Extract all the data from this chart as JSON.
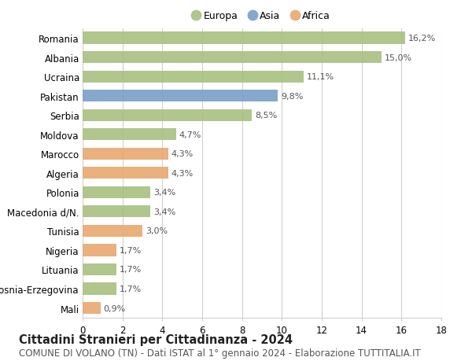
{
  "categories": [
    "Romania",
    "Albania",
    "Ucraina",
    "Pakistan",
    "Serbia",
    "Moldova",
    "Marocco",
    "Algeria",
    "Polonia",
    "Macedonia d/N.",
    "Tunisia",
    "Nigeria",
    "Lituania",
    "Bosnia-Erzegovina",
    "Mali"
  ],
  "values": [
    16.2,
    15.0,
    11.1,
    9.8,
    8.5,
    4.7,
    4.3,
    4.3,
    3.4,
    3.4,
    3.0,
    1.7,
    1.7,
    1.7,
    0.9
  ],
  "labels": [
    "16,2%",
    "15,0%",
    "11,1%",
    "9,8%",
    "8,5%",
    "4,7%",
    "4,3%",
    "4,3%",
    "3,4%",
    "3,4%",
    "3,0%",
    "1,7%",
    "1,7%",
    "1,7%",
    "0,9%"
  ],
  "continents": [
    "Europa",
    "Europa",
    "Europa",
    "Asia",
    "Europa",
    "Europa",
    "Africa",
    "Africa",
    "Europa",
    "Europa",
    "Africa",
    "Africa",
    "Europa",
    "Europa",
    "Africa"
  ],
  "colors": {
    "Europa": "#a8c080",
    "Asia": "#7a9fc7",
    "Africa": "#e8a870"
  },
  "bar_alpha": 0.9,
  "xlim": [
    0,
    18
  ],
  "xticks": [
    0,
    2,
    4,
    6,
    8,
    10,
    12,
    14,
    16,
    18
  ],
  "title": "Cittadini Stranieri per Cittadinanza - 2024",
  "subtitle": "COMUNE DI VOLANO (TN) - Dati ISTAT al 1° gennaio 2024 - Elaborazione TUTTITALIA.IT",
  "title_fontsize": 10.5,
  "subtitle_fontsize": 8.5,
  "legend_labels": [
    "Europa",
    "Asia",
    "Africa"
  ],
  "background_color": "#ffffff",
  "grid_color": "#d0d0d0",
  "label_fontsize": 8,
  "tick_fontsize": 8.5,
  "ytick_fontsize": 8.5
}
